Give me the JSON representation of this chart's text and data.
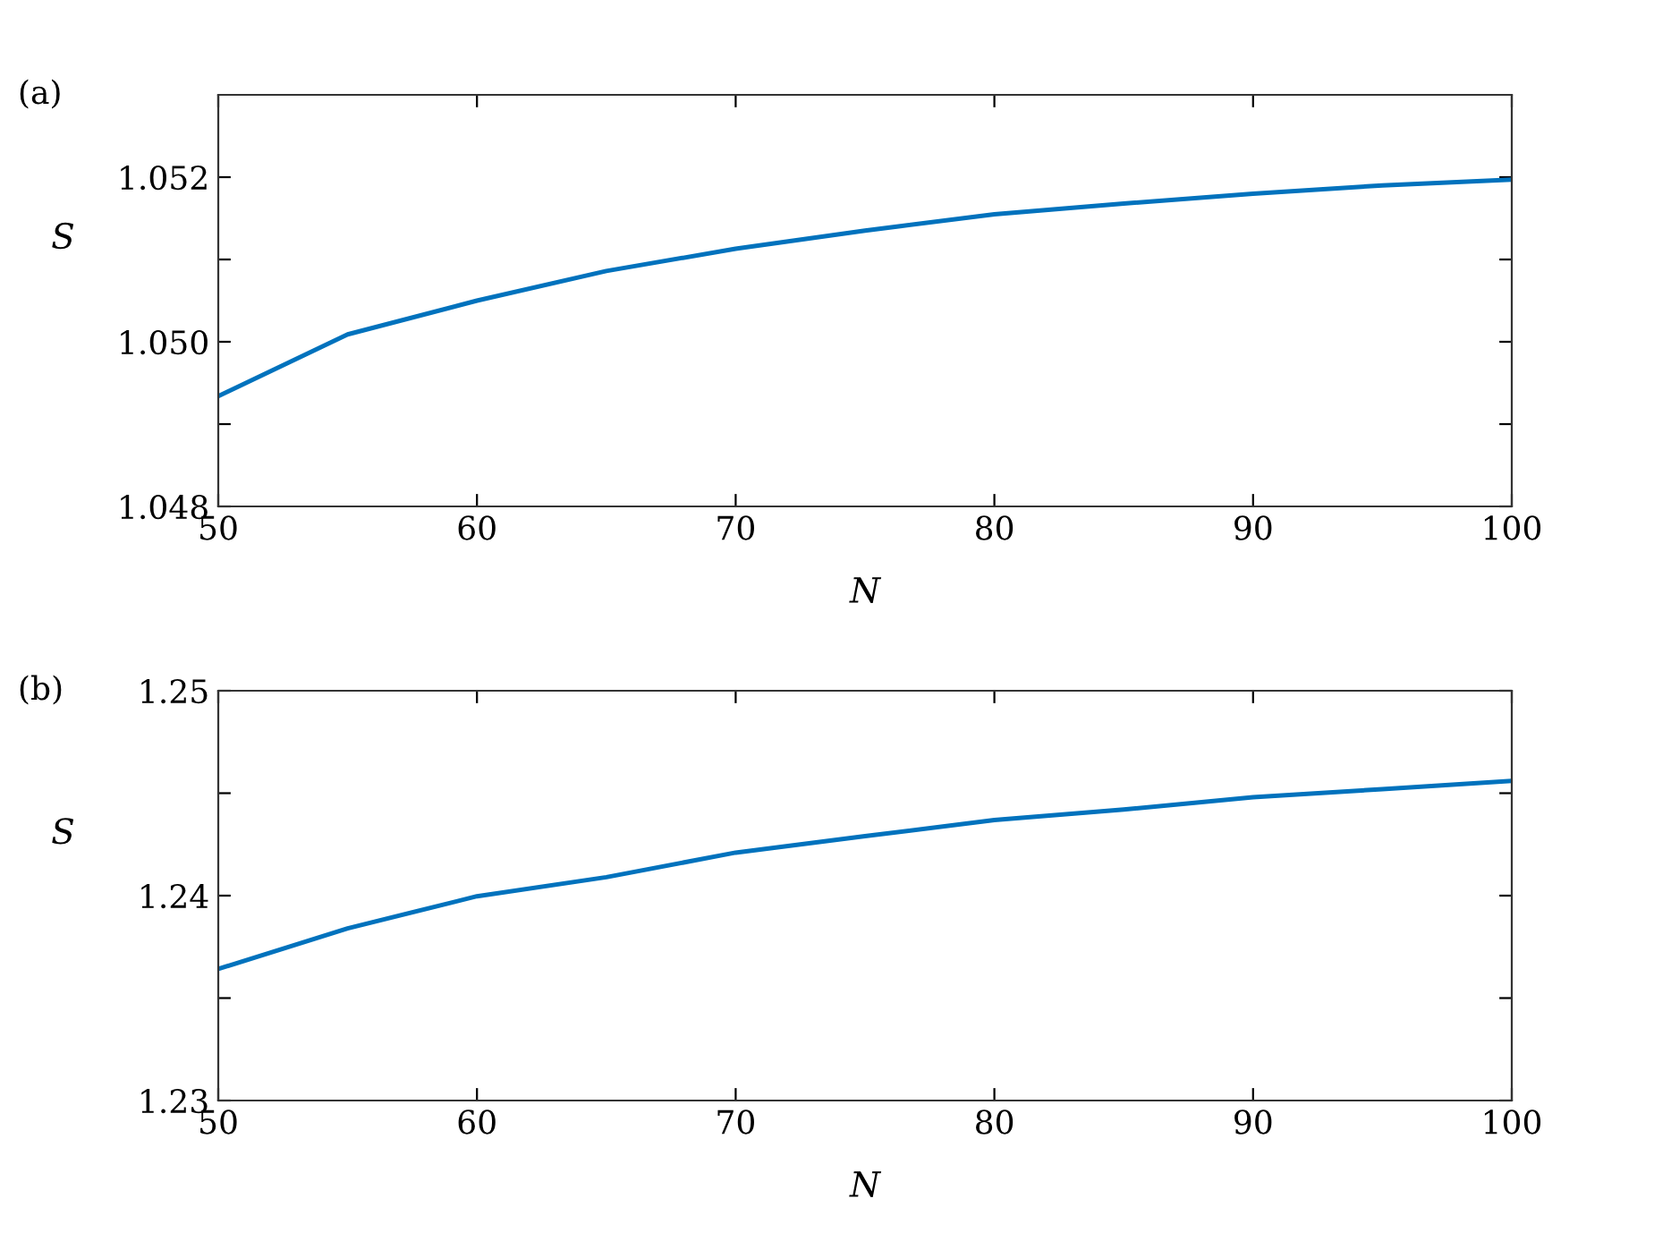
{
  "chart_data": [
    {
      "type": "line",
      "title": "(a)",
      "xlabel": "N",
      "ylabel": "S",
      "x": [
        50,
        55,
        60,
        65,
        70,
        75,
        80,
        85,
        90,
        95,
        100
      ],
      "series": [
        {
          "color": "#0072bd",
          "values": [
            1.04934,
            1.05009,
            1.0505,
            1.05086,
            1.05113,
            1.05135,
            1.05155,
            1.05168,
            1.0518,
            1.0519,
            1.05197
          ]
        }
      ],
      "xlim": [
        50,
        100
      ],
      "xticks": [
        50,
        60,
        70,
        80,
        90,
        100
      ],
      "ylim": [
        1.048,
        1.053
      ],
      "yticks": [
        {
          "value": 1.048,
          "label": "1.048"
        },
        {
          "value": 1.049,
          "label": null
        },
        {
          "value": 1.05,
          "label": "1.050"
        },
        {
          "value": 1.051,
          "label": null
        },
        {
          "value": 1.052,
          "label": "1.052"
        }
      ],
      "grid": false,
      "legend": false,
      "marker": "none",
      "line_style": "solid"
    },
    {
      "type": "line",
      "title": "(b)",
      "xlabel": "N",
      "ylabel": "S",
      "x": [
        50,
        55,
        60,
        65,
        70,
        75,
        80,
        85,
        90,
        95,
        100
      ],
      "series": [
        {
          "color": "#0072bd",
          "values": [
            1.23642,
            1.2384,
            1.23997,
            1.2409,
            1.2421,
            1.2429,
            1.24369,
            1.2442,
            1.2448,
            1.2452,
            1.2456
          ]
        }
      ],
      "xlim": [
        50,
        100
      ],
      "xticks": [
        50,
        60,
        70,
        80,
        90,
        100
      ],
      "ylim": [
        1.23,
        1.25
      ],
      "yticks": [
        {
          "value": 1.23,
          "label": "1.23"
        },
        {
          "value": 1.235,
          "label": null
        },
        {
          "value": 1.24,
          "label": "1.24"
        },
        {
          "value": 1.245,
          "label": null
        },
        {
          "value": 1.25,
          "label": "1.25"
        }
      ],
      "grid": false,
      "legend": false,
      "marker": "none",
      "line_style": "solid"
    }
  ]
}
